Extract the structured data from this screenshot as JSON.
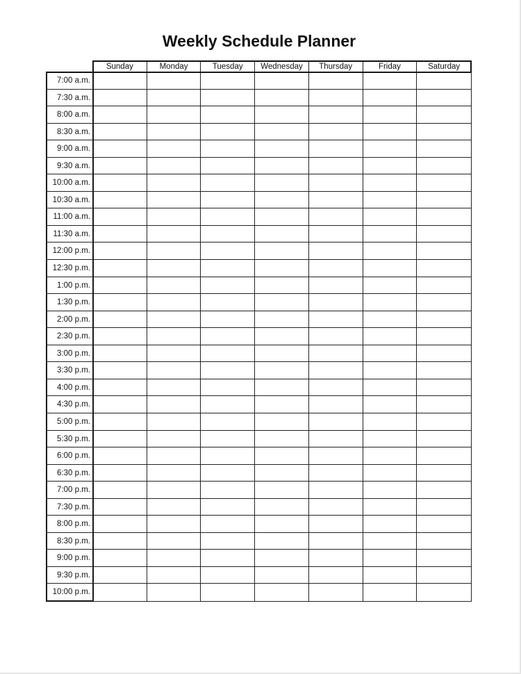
{
  "title": "Weekly Schedule Planner",
  "days": [
    "Sunday",
    "Monday",
    "Tuesday",
    "Wednesday",
    "Thursday",
    "Friday",
    "Saturday"
  ],
  "times": [
    "7:00 a.m.",
    "7:30 a.m.",
    "8:00 a.m.",
    "8:30 a.m.",
    "9:00 a.m.",
    "9:30 a.m.",
    "10:00 a.m.",
    "10:30 a.m.",
    "11:00 a.m.",
    "11:30 a.m.",
    "12:00 p.m.",
    "12:30 p.m.",
    "1:00 p.m.",
    "1:30 p.m.",
    "2:00 p.m.",
    "2:30 p.m.",
    "3:00 p.m.",
    "3:30 p.m.",
    "4:00 p.m.",
    "4:30 p.m.",
    "5:00 p.m.",
    "5:30 p.m.",
    "6:00 p.m.",
    "6:30 p.m.",
    "7:00 p.m.",
    "7:30 p.m.",
    "8:00 p.m.",
    "8:30 p.m.",
    "9:00 p.m.",
    "9:30 p.m.",
    "10:00 p.m."
  ]
}
